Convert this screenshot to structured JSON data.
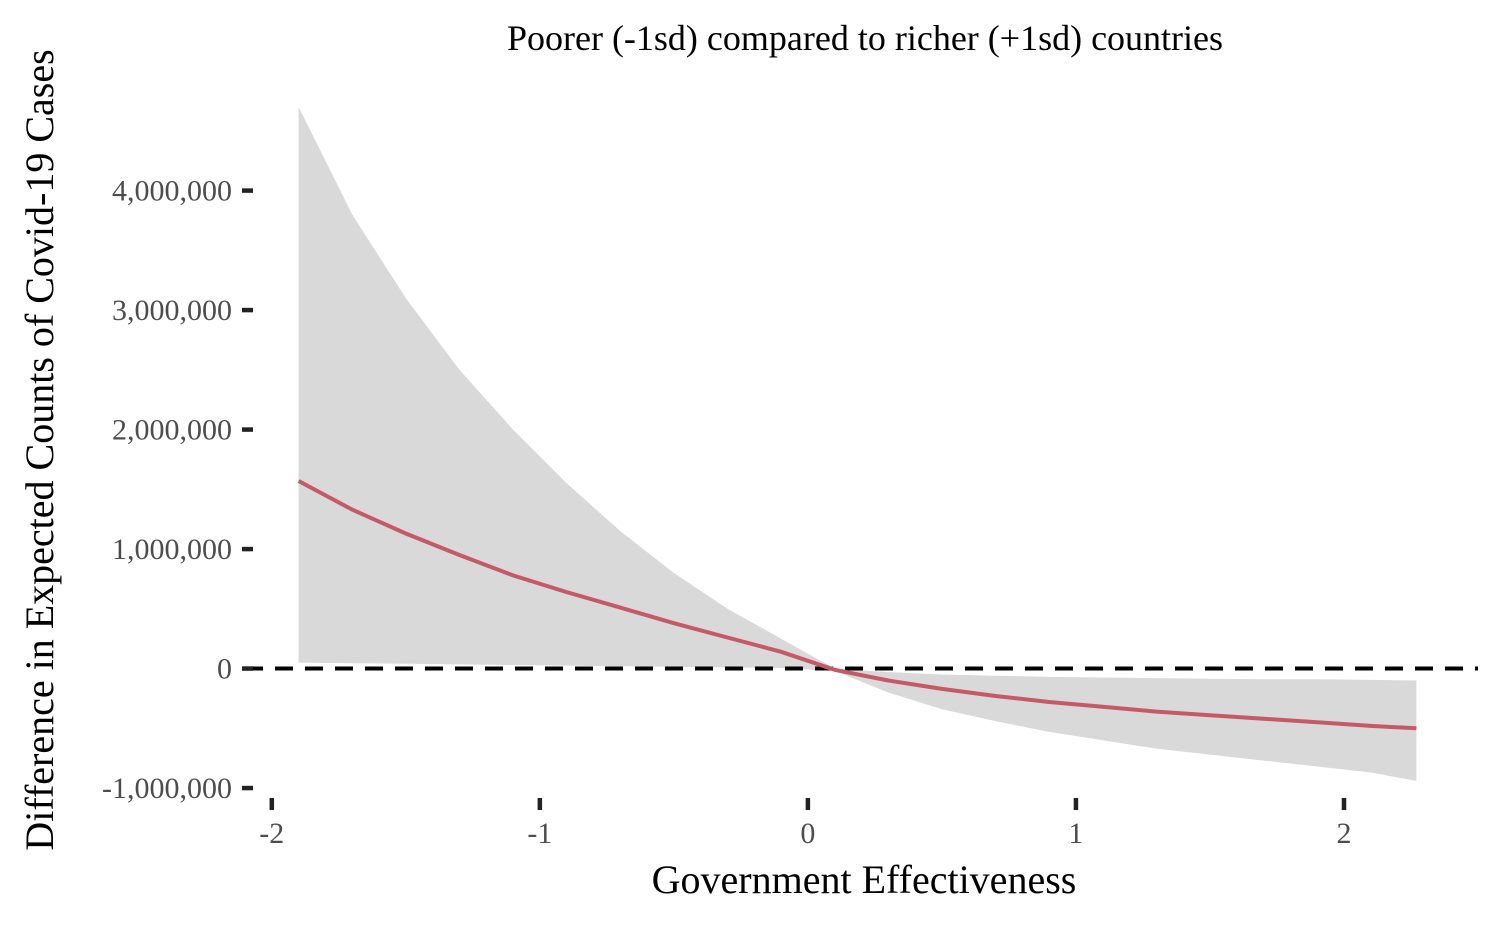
{
  "chart_data": {
    "type": "line",
    "title": "Poorer (-1sd) compared to richer (+1sd) countries",
    "xlabel": "Government Effectiveness",
    "ylabel": "Difference in Expected Counts of Covid-19 Cases",
    "xlim": [
      -2.1,
      2.5
    ],
    "ylim": [
      -1100000,
      4800000
    ],
    "x_ticks": [
      -2,
      -1,
      0,
      1,
      2
    ],
    "x_tick_labels": [
      "-2",
      "-1",
      "0",
      "1",
      "2"
    ],
    "y_ticks": [
      -1000000,
      0,
      1000000,
      2000000,
      3000000,
      4000000
    ],
    "y_tick_labels": [
      "-1,000,000",
      "0",
      "1,000,000",
      "2,000,000",
      "3,000,000",
      "4,000,000"
    ],
    "grid": false,
    "reference_line": {
      "y": 0,
      "style": "dashed",
      "color": "#000000"
    },
    "line_color": "#c45a66",
    "ribbon_color": "#d9d9d9",
    "x": [
      -1.9,
      -1.7,
      -1.5,
      -1.3,
      -1.1,
      -0.9,
      -0.7,
      -0.5,
      -0.3,
      -0.1,
      0.1,
      0.3,
      0.5,
      0.7,
      0.9,
      1.1,
      1.3,
      1.5,
      1.7,
      1.9,
      2.1,
      2.27
    ],
    "y": [
      1570000,
      1330000,
      1130000,
      950000,
      780000,
      640000,
      510000,
      380000,
      260000,
      140000,
      -10000,
      -100000,
      -170000,
      -230000,
      -280000,
      -320000,
      -360000,
      -390000,
      -420000,
      -450000,
      -480000,
      -500000
    ],
    "lower": [
      50000,
      45000,
      40000,
      35000,
      30000,
      25000,
      20000,
      15000,
      10000,
      5000,
      -20000,
      -200000,
      -340000,
      -440000,
      -530000,
      -600000,
      -670000,
      -720000,
      -770000,
      -820000,
      -870000,
      -940000
    ],
    "upper": [
      4700000,
      3800000,
      3100000,
      2500000,
      2000000,
      1550000,
      1150000,
      800000,
      500000,
      250000,
      0,
      -30000,
      -50000,
      -60000,
      -70000,
      -75000,
      -80000,
      -85000,
      -90000,
      -90000,
      -95000,
      -100000
    ]
  }
}
